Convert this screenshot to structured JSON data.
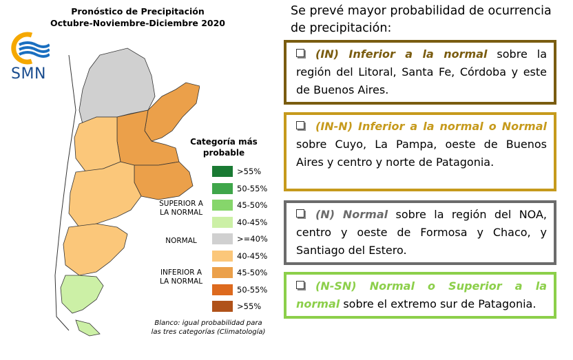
{
  "map": {
    "title_line1": "Pronóstico de Precipitación",
    "title_line2": "Octubre-Noviembre-Diciembre 2020",
    "logo_text": "SMN",
    "legend_title_line1": "Categoría más",
    "legend_title_line2": "probable",
    "legend": [
      {
        "label": ">55%",
        "color": "#1a7a33"
      },
      {
        "label": "50-55%",
        "color": "#3fa64a"
      },
      {
        "label": "45-50%",
        "color": "#86d66b"
      },
      {
        "label": "40-45%",
        "color": "#ccf0a6"
      },
      {
        "label": ">=40%",
        "color": "#d0d0d0"
      },
      {
        "label": "40-45%",
        "color": "#fbc77a"
      },
      {
        "label": "45-50%",
        "color": "#eba04a"
      },
      {
        "label": "50-55%",
        "color": "#dd6a1e"
      },
      {
        "label": ">55%",
        "color": "#b0521a"
      }
    ],
    "group_superior_line1": "SUPERIOR A",
    "group_superior_line2": "LA NORMAL",
    "group_normal": "NORMAL",
    "group_inferior_line1": "INFERIOR A",
    "group_inferior_line2": "LA NORMAL",
    "footnote_line1": "Blanco: igual probabilidad para",
    "footnote_line2": "las tres categorías (Climatología)"
  },
  "panel": {
    "intro": "Se prevé mayor probabilidad de ocurrencia de precipitación:",
    "items": [
      {
        "highlight": "(IN) Inferior a la normal",
        "text": " sobre la región del Litoral, Santa Fe, Córdoba y este de Buenos Aires.",
        "color": "#7a5c10"
      },
      {
        "highlight": "(IN-N) Inferior a la normal o Normal",
        "text": " sobre Cuyo, La Pampa, oeste de Buenos Aires y centro y norte de Patagonia.",
        "color": "#c69a1c"
      },
      {
        "highlight": "(N) Normal",
        "text": " sobre la región del NOA, centro y oeste de Formosa y Chaco, y Santiago del Estero.",
        "color": "#6b6b6b"
      },
      {
        "highlight": "(N-SN) Normal o Superior a la normal",
        "text": " sobre el extremo sur de Patagonia.",
        "color": "#8ccf4a"
      }
    ]
  }
}
